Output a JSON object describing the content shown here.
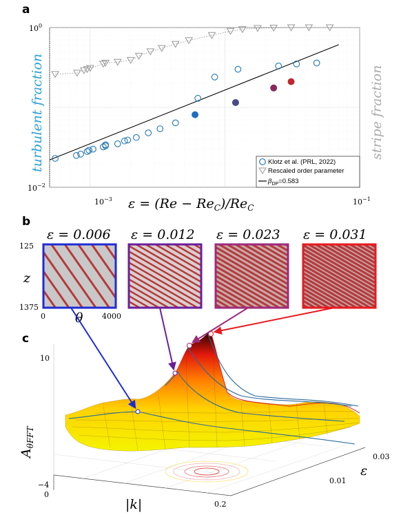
{
  "panel_a": {
    "letter": "a",
    "y_left_label": "turbulent fraction",
    "y_right_label": "stripe fraction",
    "x_label": "ε = (Re − Re_C)/Re_C",
    "x_label_main": "ε = (Re − Re",
    "x_label_sub1": "C",
    "x_label_mid": ")/Re",
    "x_label_sub2": "C",
    "ytick_top": "10",
    "ytick_top_exp": "0",
    "ytick_bottom": "10",
    "ytick_bottom_exp": "−2",
    "xtick_left": "10",
    "xtick_left_exp": "−3",
    "xtick_right": "10",
    "xtick_right_exp": "−1",
    "legend": {
      "klotz": "Klotz et al. (PRL, 2022)",
      "rescaled": "Rescaled order parameter",
      "beta_prefix": "β",
      "beta_sub": "DP",
      "beta_value": "=0.583"
    },
    "colors": {
      "turbulent": "#1f77b4",
      "stripe": "#999999",
      "left_label": "#2a9fd6",
      "right_label": "#aaaaaa"
    }
  },
  "panel_b": {
    "letter": "b",
    "z_label": "z",
    "theta_label": "θ",
    "z_top": "125",
    "z_bottom": "1375",
    "theta_left": "0",
    "theta_right": "4000",
    "snapshots": [
      {
        "label": "ε = 0.006",
        "color": "#1f2bd6"
      },
      {
        "label": "ε = 0.012",
        "color": "#6a1f9e"
      },
      {
        "label": "ε = 0.023",
        "color": "#9e2a7a"
      },
      {
        "label": "ε = 0.031",
        "color": "#e8191e"
      }
    ]
  },
  "panel_c": {
    "letter": "c",
    "z_label": "A",
    "z_label_sub": "θFFT",
    "k_label": "|k|",
    "eps_label": "ε",
    "ztick_10": "10",
    "ztick_m4": "−4",
    "ktick_0": "0",
    "ktick_02": "0.2",
    "eps_tick_001": "0.01",
    "eps_tick_003": "0.03"
  },
  "chart_data": {
    "type": "scatter",
    "title": "",
    "xlabel": "ε = (Re − Re_C)/Re_C",
    "ylabel": "turbulent fraction",
    "ylabel_right": "stripe fraction",
    "xscale": "log",
    "yscale": "log",
    "xlim": [
      0.0005,
      0.1
    ],
    "ylim": [
      0.01,
      1
    ],
    "grid": true,
    "legend_position": "bottom-right",
    "series": [
      {
        "name": "Klotz et al. (PRL, 2022)",
        "marker": "open-circle",
        "x": [
          0.00055,
          0.00079,
          0.00085,
          0.00095,
          0.00098,
          0.00105,
          0.00125,
          0.0013,
          0.0013,
          0.0016,
          0.0018,
          0.0019,
          0.0022,
          0.0027,
          0.0033,
          0.0043,
          0.0063,
          0.0084,
          0.0125,
          0.025,
          0.034,
          0.048
        ],
        "y": [
          0.023,
          0.025,
          0.026,
          0.028,
          0.029,
          0.03,
          0.032,
          0.033,
          0.034,
          0.035,
          0.038,
          0.039,
          0.042,
          0.048,
          0.054,
          0.064,
          0.13,
          0.24,
          0.3,
          0.33,
          0.35,
          0.36
        ]
      },
      {
        "name": "Rescaled order parameter",
        "marker": "open-triangle-down",
        "x": [
          0.00055,
          0.0008,
          0.0009,
          0.00095,
          0.001,
          0.00125,
          0.0013,
          0.0016,
          0.002,
          0.0023,
          0.0028,
          0.0034,
          0.0043,
          0.0054,
          0.008,
          0.011,
          0.0135,
          0.0175,
          0.023,
          0.031,
          0.042,
          0.06
        ],
        "y": [
          0.26,
          0.27,
          0.29,
          0.3,
          0.31,
          0.35,
          0.36,
          0.37,
          0.39,
          0.44,
          0.5,
          0.55,
          0.62,
          0.69,
          0.8,
          0.9,
          0.95,
          0.98,
          0.99,
          1.0,
          1.0,
          1.0
        ]
      },
      {
        "name": "β_DP=0.583",
        "type": "line",
        "x": [
          0.0005,
          0.07
        ],
        "y": [
          0.022,
          0.61
        ]
      }
    ],
    "highlighted_points": [
      {
        "x": 0.006,
        "y": 0.081,
        "color": "#1f6fbf"
      },
      {
        "x": 0.012,
        "y": 0.115,
        "color": "#4a4a8a"
      },
      {
        "x": 0.023,
        "y": 0.175,
        "color": "#8a2a5a"
      },
      {
        "x": 0.031,
        "y": 0.21,
        "color": "#c0272d"
      }
    ]
  }
}
